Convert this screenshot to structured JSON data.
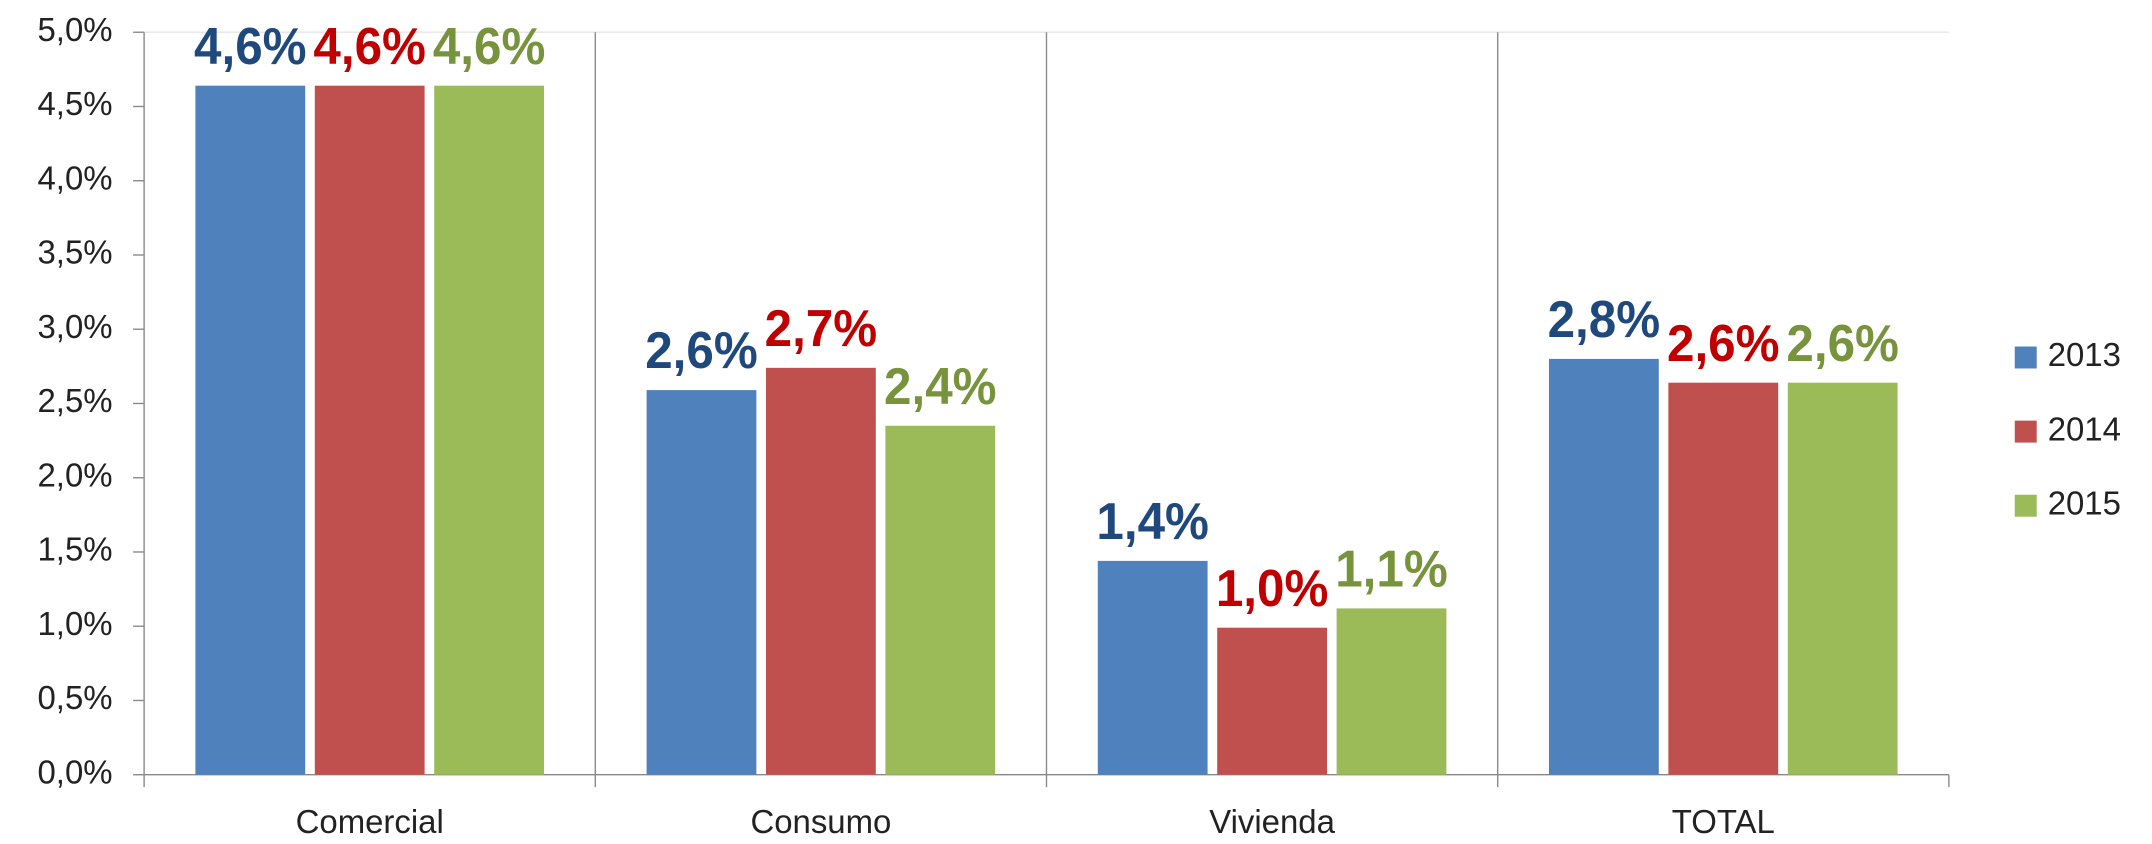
{
  "chart_data": {
    "type": "bar",
    "categories": [
      "Comercial",
      "Consumo",
      "Vivienda",
      "TOTAL"
    ],
    "series": [
      {
        "name": "2013",
        "color": "#4f81bd",
        "label_color": "#1f497d",
        "values": [
          4.64,
          2.59,
          1.44,
          2.8
        ],
        "value_labels": [
          "4,6%",
          "2,6%",
          "1,4%",
          "2,8%"
        ]
      },
      {
        "name": "2014",
        "color": "#c0504d",
        "label_color": "#c00000",
        "values": [
          4.64,
          2.74,
          0.99,
          2.64
        ],
        "value_labels": [
          "4,6%",
          "2,7%",
          "1,0%",
          "2,6%"
        ]
      },
      {
        "name": "2015",
        "color": "#9bbb59",
        "label_color": "#77933c",
        "values": [
          4.64,
          2.35,
          1.12,
          2.64
        ],
        "value_labels": [
          "4,6%",
          "2,4%",
          "1,1%",
          "2,6%"
        ]
      }
    ],
    "ylim": [
      0,
      5
    ],
    "yticks": [
      {
        "value": 0,
        "label": "0,0%"
      },
      {
        "value": 0.5,
        "label": "0,5%"
      },
      {
        "value": 1,
        "label": "1,0%"
      },
      {
        "value": 1.5,
        "label": "1,5%"
      },
      {
        "value": 2,
        "label": "2,0%"
      },
      {
        "value": 2.5,
        "label": "2,5%"
      },
      {
        "value": 3,
        "label": "3,0%"
      },
      {
        "value": 3.5,
        "label": "3,5%"
      },
      {
        "value": 4,
        "label": "4,0%"
      },
      {
        "value": 4.5,
        "label": "4,5%"
      },
      {
        "value": 5,
        "label": "5,0%"
      }
    ],
    "legend": "right"
  }
}
